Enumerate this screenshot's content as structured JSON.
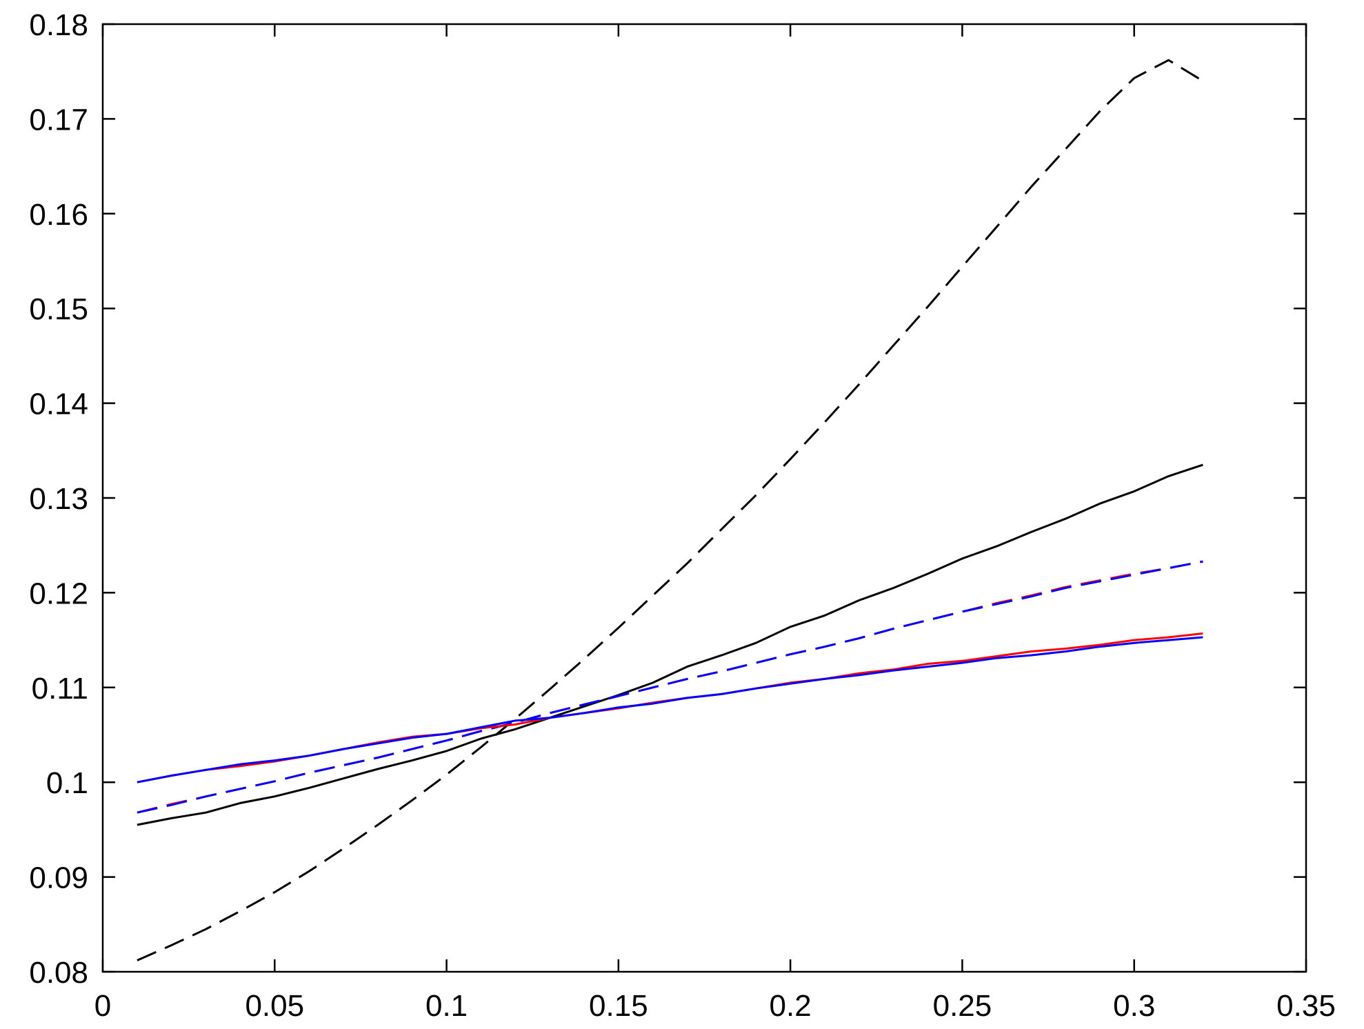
{
  "chart_data": {
    "type": "line",
    "title": "",
    "xlabel": "",
    "ylabel": "",
    "xlim": [
      0,
      0.35
    ],
    "ylim": [
      0.08,
      0.18
    ],
    "x_ticks": [
      "0",
      "0.05",
      "0.1",
      "0.15",
      "0.2",
      "0.25",
      "0.3",
      "0.35"
    ],
    "y_ticks": [
      "0.08",
      "0.09",
      "0.1",
      "0.11",
      "0.12",
      "0.13",
      "0.14",
      "0.15",
      "0.16",
      "0.17",
      "0.18"
    ],
    "grid": false,
    "x": [
      0.01,
      0.02,
      0.03,
      0.04,
      0.05,
      0.06,
      0.07,
      0.08,
      0.09,
      0.1,
      0.11,
      0.12,
      0.13,
      0.14,
      0.15,
      0.16,
      0.17,
      0.18,
      0.19,
      0.2,
      0.21,
      0.22,
      0.23,
      0.24,
      0.25,
      0.26,
      0.27,
      0.28,
      0.29,
      0.3,
      0.31,
      0.32
    ],
    "series": [
      {
        "color": "#000000",
        "dash": "dashed",
        "values": [
          0.0812,
          0.0828,
          0.0845,
          0.0864,
          0.0884,
          0.0906,
          0.093,
          0.0955,
          0.0981,
          0.1008,
          0.1037,
          0.1067,
          0.1098,
          0.113,
          0.1163,
          0.1197,
          0.1231,
          0.1267,
          0.1303,
          0.1341,
          0.138,
          0.142,
          0.1461,
          0.1502,
          0.1544,
          0.1586,
          0.1628,
          0.1668,
          0.1708,
          0.1743,
          0.1762,
          0.174
        ]
      },
      {
        "color": "#000000",
        "dash": "solid",
        "values": [
          0.0955,
          0.0962,
          0.0968,
          0.0978,
          0.0985,
          0.0994,
          0.1004,
          0.1014,
          0.1023,
          0.1033,
          0.1046,
          0.1056,
          0.1068,
          0.108,
          0.1092,
          0.1105,
          0.1122,
          0.1134,
          0.1147,
          0.1164,
          0.1176,
          0.1192,
          0.1205,
          0.122,
          0.1236,
          0.1249,
          0.1264,
          0.1278,
          0.1294,
          0.1307,
          0.1323,
          0.1335
        ]
      },
      {
        "color": "#ff0000",
        "dash": "dashed",
        "values": [
          0.0968,
          0.0977,
          0.0985,
          0.0993,
          0.1001,
          0.101,
          0.1018,
          0.1026,
          0.1035,
          0.1044,
          0.1054,
          0.1063,
          0.1073,
          0.1082,
          0.1091,
          0.11,
          0.1109,
          0.1117,
          0.1126,
          0.1135,
          0.1143,
          0.1152,
          0.1162,
          0.1171,
          0.118,
          0.1189,
          0.1197,
          0.1206,
          0.1213,
          0.122,
          0.1226,
          0.1233
        ]
      },
      {
        "color": "#0000ff",
        "dash": "dashed",
        "values": [
          0.0968,
          0.0976,
          0.0985,
          0.0993,
          0.1001,
          0.101,
          0.1018,
          0.1026,
          0.1035,
          0.1044,
          0.1054,
          0.1063,
          0.1073,
          0.1082,
          0.1091,
          0.11,
          0.1109,
          0.1117,
          0.1126,
          0.1135,
          0.1143,
          0.1152,
          0.1162,
          0.1171,
          0.118,
          0.1188,
          0.1196,
          0.1205,
          0.1212,
          0.1219,
          0.1226,
          0.1233
        ]
      },
      {
        "color": "#ff0000",
        "dash": "solid",
        "values": [
          0.1,
          0.1007,
          0.1013,
          0.1017,
          0.1022,
          0.1028,
          0.1035,
          0.1042,
          0.1048,
          0.1051,
          0.1057,
          0.1061,
          0.1068,
          0.1073,
          0.1078,
          0.1084,
          0.1089,
          0.1093,
          0.1099,
          0.1105,
          0.1109,
          0.1115,
          0.1119,
          0.1125,
          0.1128,
          0.1133,
          0.1138,
          0.1141,
          0.1145,
          0.115,
          0.1153,
          0.1157
        ]
      },
      {
        "color": "#0000ff",
        "dash": "solid",
        "values": [
          0.1,
          0.1007,
          0.1013,
          0.1019,
          0.1023,
          0.1028,
          0.1035,
          0.1041,
          0.1047,
          0.1051,
          0.1058,
          0.1065,
          0.1068,
          0.1073,
          0.1079,
          0.1083,
          0.1089,
          0.1093,
          0.1099,
          0.1104,
          0.1109,
          0.1113,
          0.1118,
          0.1122,
          0.1126,
          0.1131,
          0.1134,
          0.1138,
          0.1143,
          0.1147,
          0.115,
          0.1153
        ]
      }
    ]
  }
}
